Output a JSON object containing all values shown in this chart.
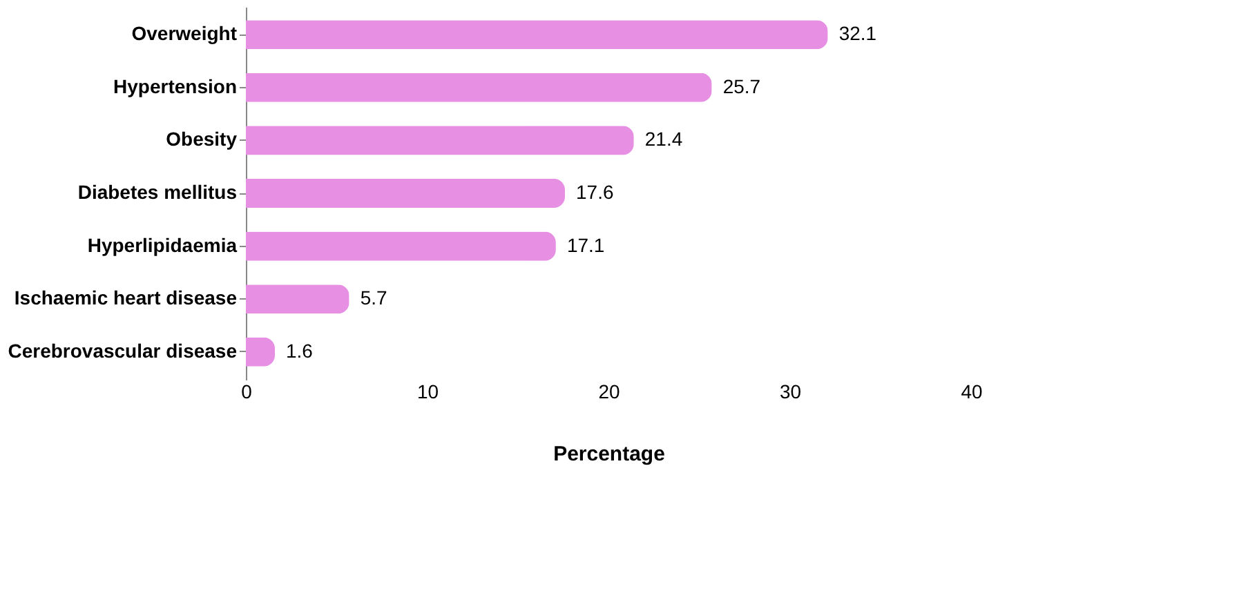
{
  "chart_data": {
    "type": "bar",
    "orientation": "horizontal",
    "xlabel": "Percentage",
    "categories": [
      "Overweight",
      "Hypertension",
      "Obesity",
      "Diabetes mellitus",
      "Hyperlipidaemia",
      "Ischaemic heart disease",
      "Cerebrovascular disease"
    ],
    "values": [
      32.1,
      25.7,
      21.4,
      17.6,
      17.1,
      5.7,
      1.6
    ],
    "color": "#e68fe3",
    "xlim": [
      0,
      40
    ],
    "xticks": [
      0,
      10,
      20,
      30,
      40
    ],
    "grid": false,
    "data_labels": true
  }
}
